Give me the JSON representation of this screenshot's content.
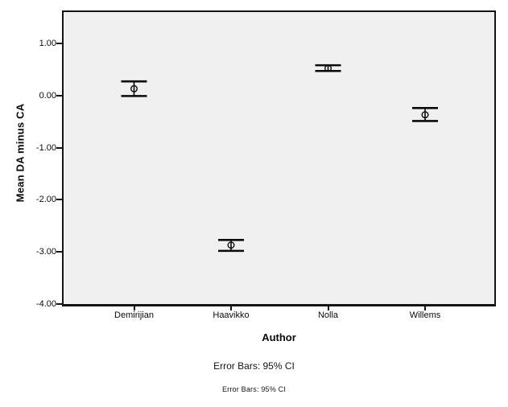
{
  "figure": {
    "footnote_primary": "Error Bars: 95% CI",
    "footnote_secondary": "Error Bars: 95% CI"
  },
  "chart_data": {
    "type": "errorbar",
    "title": "",
    "xlabel": "Author",
    "ylabel": "Mean DA minus CA",
    "categories": [
      "Demirijian",
      "Haavikko",
      "Nolla",
      "Willems"
    ],
    "series": [
      {
        "name": "Mean DA minus CA with 95% CI",
        "means": [
          0.13,
          -2.87,
          0.52,
          -0.37
        ],
        "ci_upper": [
          0.27,
          -2.77,
          0.58,
          -0.24
        ],
        "ci_lower": [
          -0.01,
          -2.98,
          0.47,
          -0.49
        ]
      }
    ],
    "ylim": [
      -4.0,
      1.6
    ],
    "yticks": [
      1.0,
      0.0,
      -1.0,
      -2.0,
      -3.0,
      -4.0
    ],
    "ytick_labels": [
      "1.00",
      "0.00",
      "-1.00",
      "-2.00",
      "-3.00",
      "-4.00"
    ],
    "grid": false,
    "legend": "none",
    "marker": "open-circle",
    "error_bar_note": "Error Bars: 95% CI",
    "colors": {
      "plot_background": "#f0f0f0",
      "frame": "#141414",
      "error_bar": "#0a0a0a",
      "page_background": "#ffffff"
    }
  }
}
